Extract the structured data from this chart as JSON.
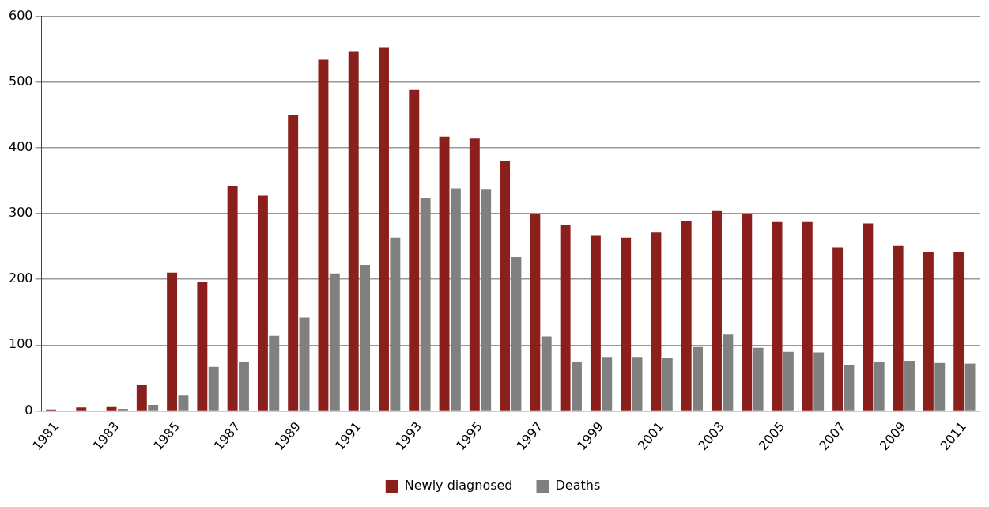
{
  "chart_data": {
    "type": "bar",
    "categories": [
      "1981",
      null,
      "1983",
      null,
      "1985",
      null,
      "1987",
      null,
      "1989",
      null,
      "1991",
      null,
      "1993",
      null,
      "1995",
      null,
      "1997",
      null,
      "1999",
      null,
      "2001",
      null,
      "2003",
      null,
      "2005",
      null,
      "2007",
      null,
      "2009",
      null,
      "2011"
    ],
    "series": [
      {
        "name": "Newly diagnosed",
        "color": "#8b1f1b",
        "values": [
          2,
          5,
          7,
          39,
          210,
          196,
          342,
          327,
          450,
          534,
          546,
          552,
          488,
          417,
          414,
          380,
          300,
          282,
          267,
          263,
          272,
          289,
          304,
          300,
          287,
          287,
          249,
          285,
          251,
          242,
          242
        ]
      },
      {
        "name": "Deaths",
        "color": "#808080",
        "values": [
          0,
          0,
          3,
          9,
          23,
          67,
          74,
          114,
          142,
          209,
          222,
          263,
          324,
          338,
          337,
          234,
          113,
          74,
          82,
          82,
          80,
          97,
          117,
          96,
          90,
          89,
          70,
          74,
          76,
          73,
          72
        ]
      }
    ],
    "ylim": [
      0,
      600
    ],
    "yticks": [
      0,
      100,
      200,
      300,
      400,
      500,
      600
    ],
    "grid": "y",
    "legend": "bottom"
  }
}
